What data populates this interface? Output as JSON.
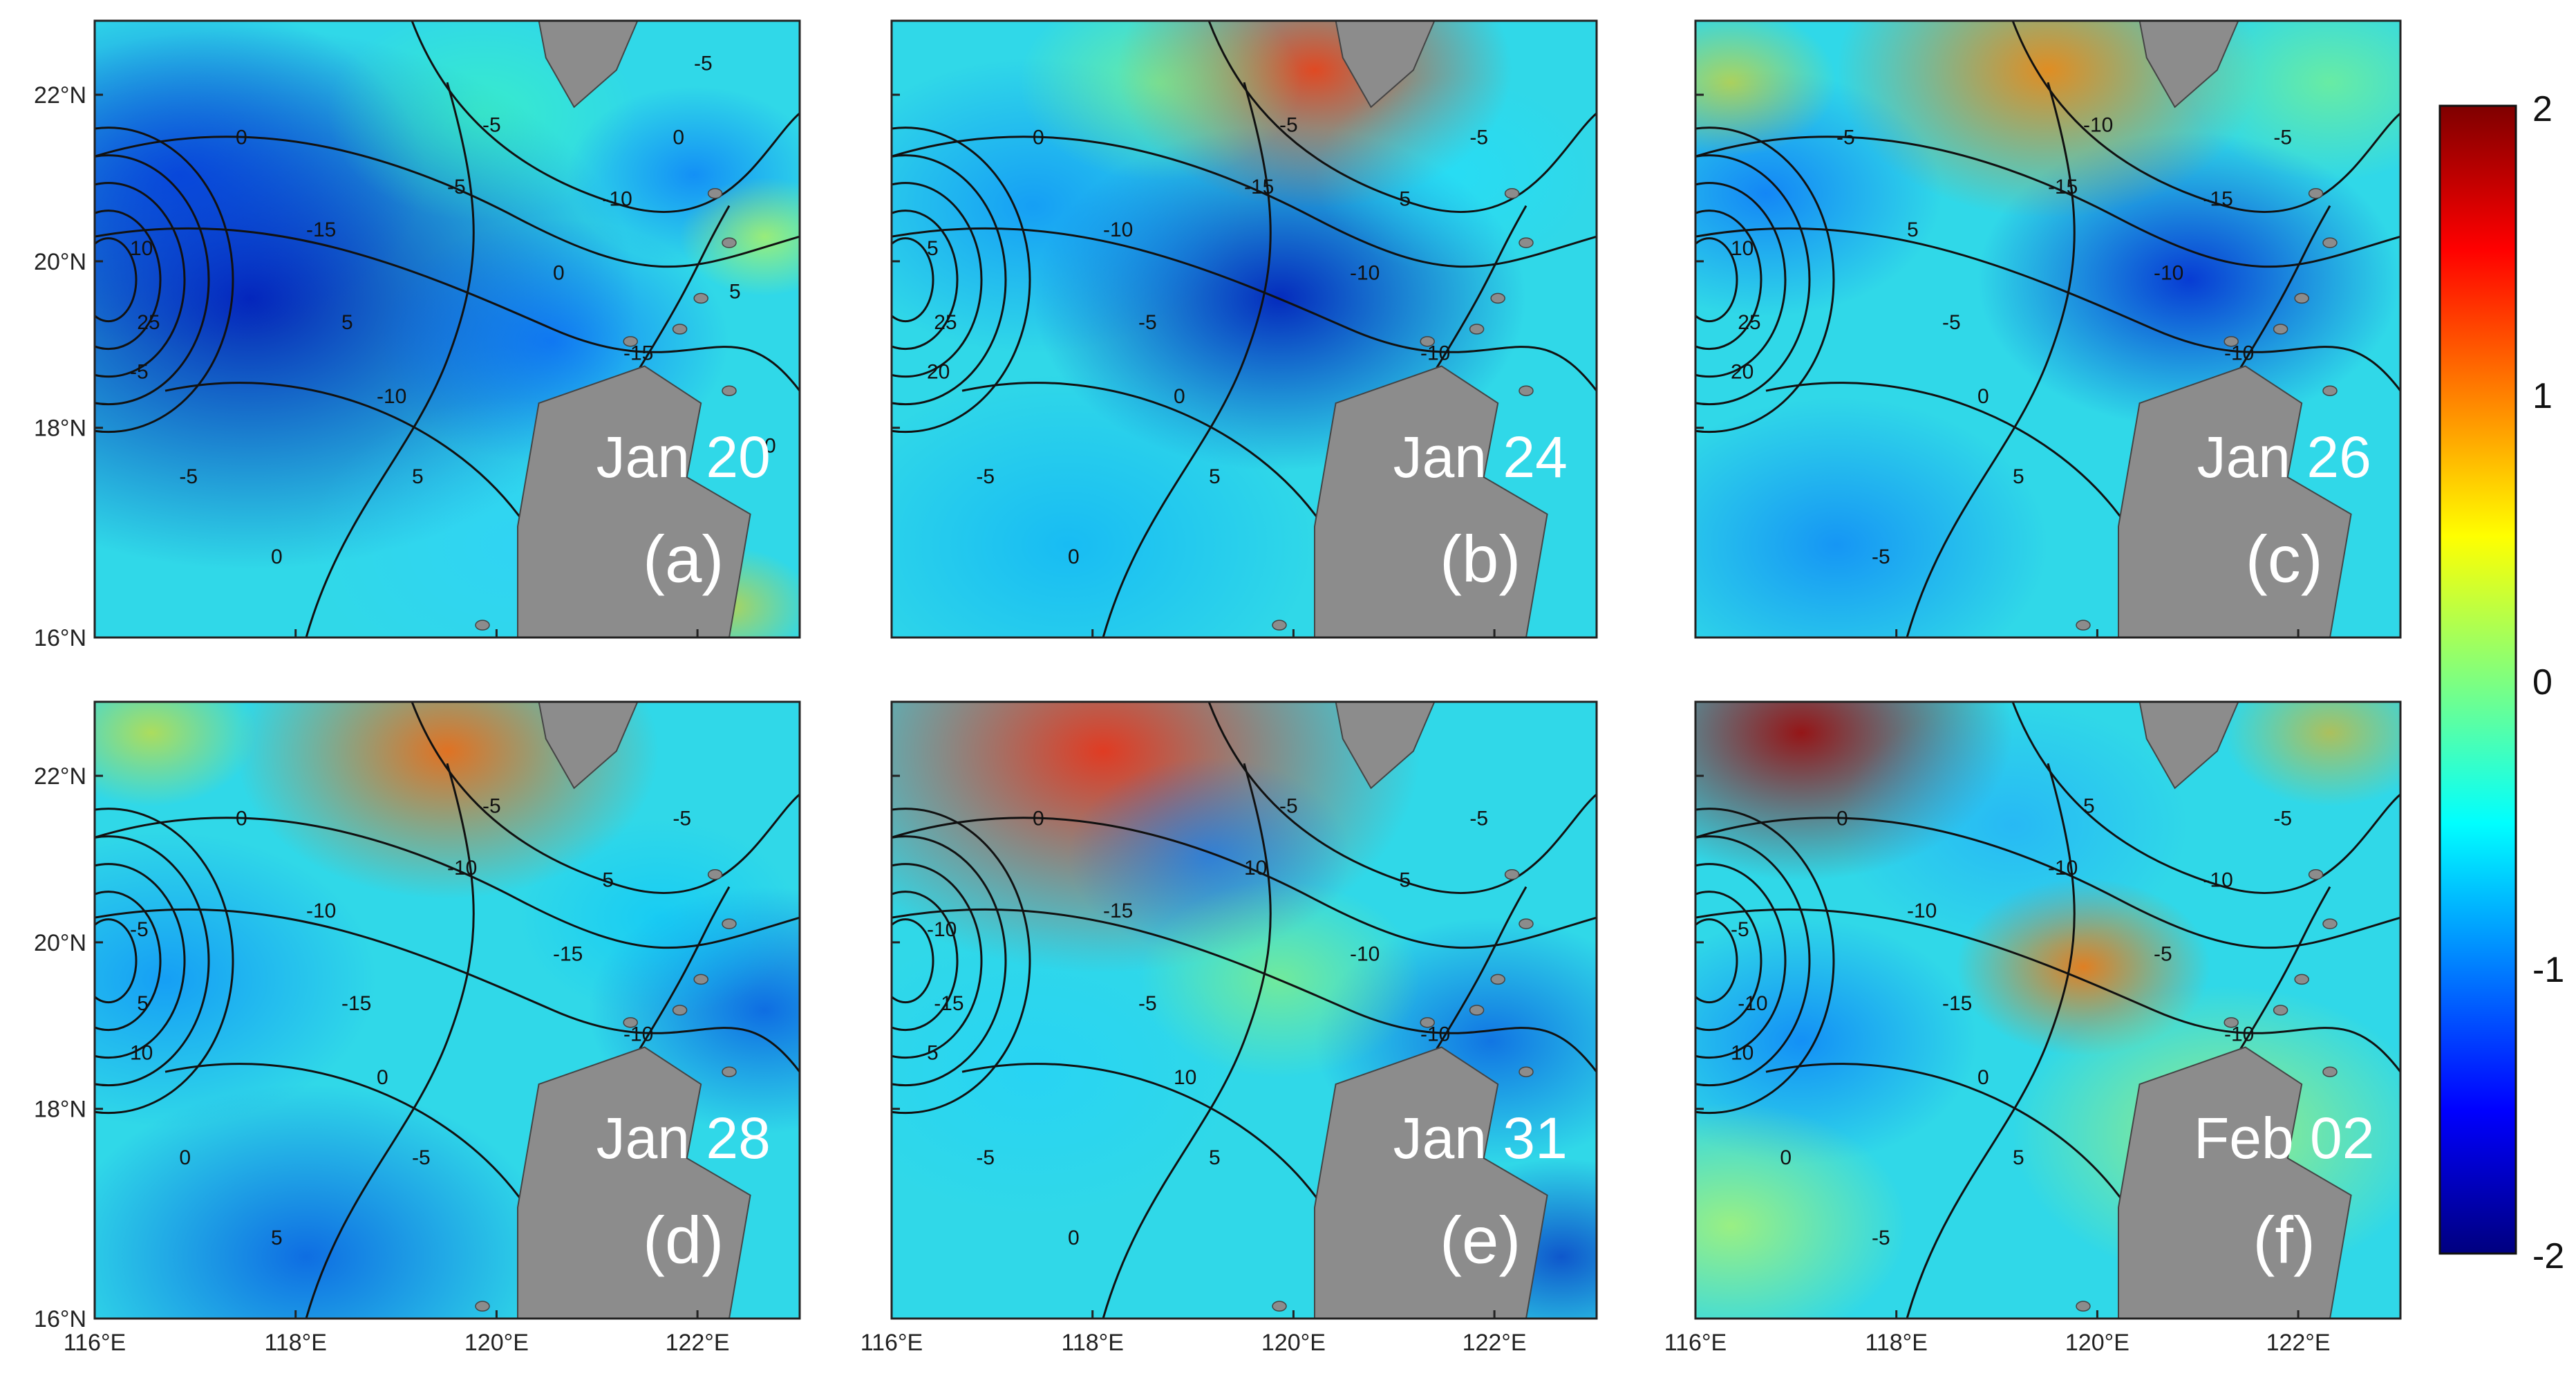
{
  "colorbar": {
    "min": -2,
    "max": 2,
    "tick_labels": [
      "2",
      "1",
      "0",
      "-1",
      "-2"
    ],
    "colormap": "jet",
    "colors": [
      "#00007f",
      "#0000ff",
      "#007fff",
      "#00ffff",
      "#7fff7f",
      "#ffff00",
      "#ff7f00",
      "#ff0000",
      "#7f0000"
    ]
  },
  "axes": {
    "x_ticks": [
      "116°E",
      "118°E",
      "120°E",
      "122°E"
    ],
    "y_ticks": [
      "22°N",
      "20°N",
      "18°N",
      "16°N"
    ],
    "land_color": "#8c8c8c"
  },
  "panels": [
    {
      "date": "Jan 20",
      "letter": "(a)",
      "contour_labels": [
        "0",
        "-5",
        "-10",
        "-5",
        "0",
        "5",
        "-15",
        "10",
        "25",
        "-5",
        "-10",
        "0",
        "-15",
        "5",
        "0",
        "-5",
        "-5",
        "5",
        "0"
      ]
    },
    {
      "date": "Jan 24",
      "letter": "(b)",
      "contour_labels": [
        "0",
        "-5",
        "5",
        "-15",
        "-10",
        "-5",
        "-10",
        "5",
        "25",
        "20",
        "0",
        "-5",
        "-10",
        "5",
        "0",
        "-5"
      ]
    },
    {
      "date": "Jan 26",
      "letter": "(c)",
      "contour_labels": [
        "-5",
        "-10",
        "-15",
        "-15",
        "-10",
        "-5",
        "5",
        "10",
        "25",
        "20",
        "0",
        "-5",
        "-10",
        "5",
        "-5"
      ]
    },
    {
      "date": "Jan 28",
      "letter": "(d)",
      "contour_labels": [
        "0",
        "-5",
        "5",
        "-10",
        "-15",
        "-15",
        "-10",
        "-5",
        "5",
        "10",
        "0",
        "-5",
        "-10",
        "-5",
        "5",
        "0"
      ]
    },
    {
      "date": "Jan 31",
      "letter": "(e)",
      "contour_labels": [
        "0",
        "-5",
        "5",
        "10",
        "-10",
        "-5",
        "-15",
        "-10",
        "-15",
        "5",
        "10",
        "-5",
        "-10",
        "5",
        "0",
        "-5"
      ]
    },
    {
      "date": "Feb 02",
      "letter": "(f)",
      "contour_labels": [
        "0",
        "5",
        "-10",
        "-10",
        "-5",
        "-15",
        "-10",
        "-5",
        "-10",
        "10",
        "0",
        "-5",
        "-10",
        "5",
        "-5",
        "0"
      ]
    }
  ]
}
